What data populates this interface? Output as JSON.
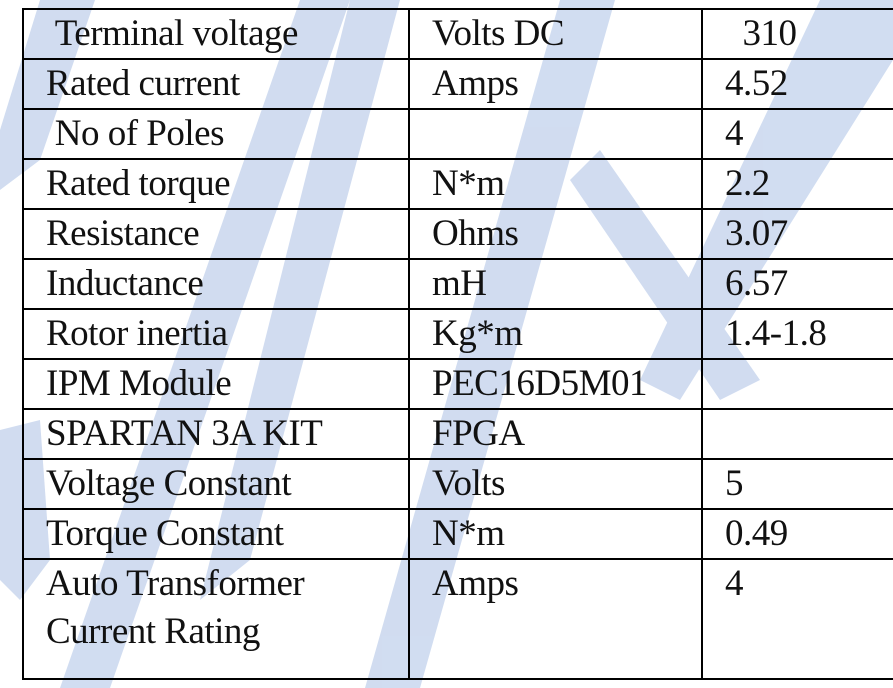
{
  "table": {
    "rows": [
      [
        " Terminal voltage",
        "Volts DC",
        "  310"
      ],
      [
        "Rated current",
        "Amps",
        "4.52"
      ],
      [
        " No of Poles",
        null,
        "4"
      ],
      [
        "Rated torque",
        "N*m",
        "2.2"
      ],
      [
        "Resistance",
        "Ohms",
        "3.07"
      ],
      [
        "Inductance",
        "mH",
        "6.57"
      ],
      [
        "Rotor inertia",
        "Kg*m",
        "1.4-1.8"
      ],
      [
        "IPM Module",
        "PEC16D5M01",
        null
      ],
      [
        "SPARTAN 3A KIT",
        "FPGA",
        null
      ],
      [
        "Voltage Constant",
        "Volts",
        "5"
      ],
      [
        "Torque Constant",
        "N*m",
        "0.49"
      ],
      [
        "Auto Transformer Current Rating",
        "Amps",
        "4"
      ]
    ]
  }
}
